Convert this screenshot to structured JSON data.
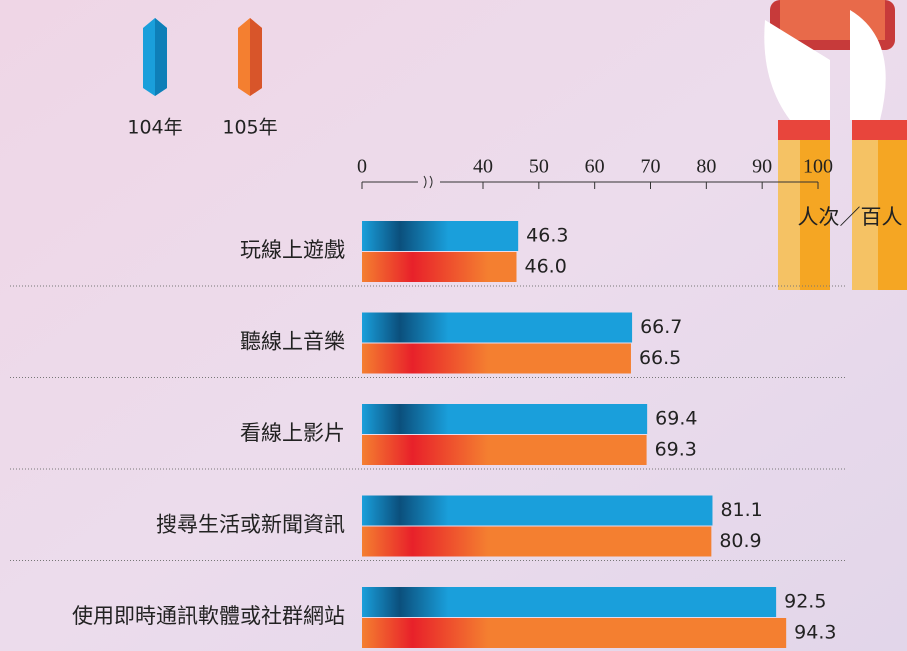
{
  "chart_data": {
    "type": "hbar",
    "categories": [
      "玩線上遊戲",
      "聽線上音樂",
      "看線上影片",
      "搜尋生活或新聞資訊",
      "使用即時通訊軟體或社群網站"
    ],
    "series": [
      {
        "name": "104年",
        "color": "#1a9fdb",
        "values": [
          46.3,
          66.7,
          69.4,
          81.1,
          92.5
        ],
        "value_labels": [
          "46.3",
          "66.7",
          "69.4",
          "81.1",
          "92.5"
        ]
      },
      {
        "name": "105年",
        "color": "#f47f30",
        "values": [
          46.0,
          66.5,
          69.3,
          80.9,
          94.3
        ],
        "value_labels": [
          "46.0",
          "66.5",
          "69.3",
          "80.9",
          "94.3"
        ]
      }
    ],
    "xlim": [
      0,
      100
    ],
    "xticks": [
      0,
      40,
      50,
      60,
      70,
      80,
      90,
      100
    ],
    "xbreak": true,
    "xlabel": "人次／百人"
  }
}
